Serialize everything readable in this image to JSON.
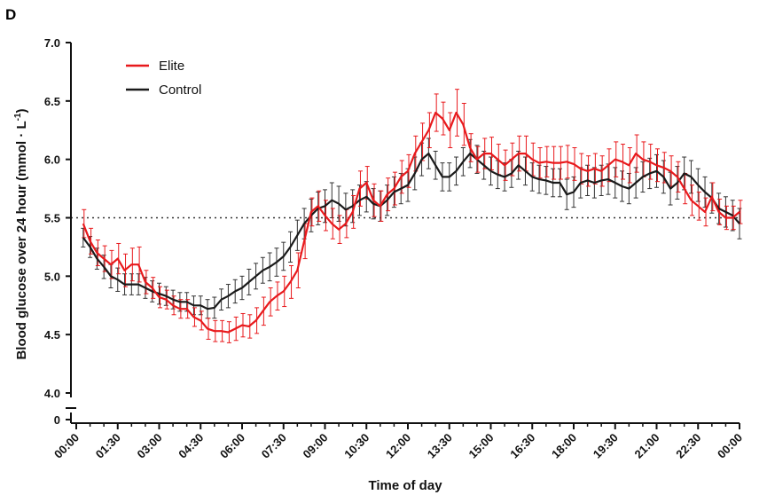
{
  "panel_label": "D",
  "chart_data": {
    "type": "line",
    "title": "",
    "xlabel": "Time of day",
    "ylabel_main": "Blood glucose over 24 hour (mmol · L",
    "ylabel_sup": "-1",
    "ylabel_close": ")",
    "ylim": [
      4.0,
      7.0
    ],
    "y_break_tick": 0,
    "yticks": [
      4.0,
      4.5,
      5.0,
      5.5,
      6.0,
      6.5,
      7.0
    ],
    "ytick_labels": [
      "4.0",
      "4.5",
      "5.0",
      "5.5",
      "6.0",
      "6.5",
      "7.0"
    ],
    "y_break_label": "0",
    "xticks": [
      0,
      1.5,
      3,
      4.5,
      6,
      7.5,
      9,
      10.5,
      12,
      13.5,
      15,
      16.5,
      18,
      19.5,
      21,
      22.5,
      24
    ],
    "xtick_labels": [
      "00:00",
      "01:30",
      "03:00",
      "04:30",
      "06:00",
      "07:30",
      "09:00",
      "10:30",
      "12:00",
      "13:30",
      "15:00",
      "16:30",
      "18:00",
      "19:30",
      "21:00",
      "22:30",
      "00:00"
    ],
    "reference_line": 5.5,
    "x_start": 0.25,
    "x_step": 0.25,
    "legend": {
      "position": "top-left"
    },
    "series": [
      {
        "name": "Elite",
        "color": "#e8191c",
        "values": [
          5.45,
          5.3,
          5.2,
          5.15,
          5.1,
          5.15,
          5.05,
          5.1,
          5.1,
          4.95,
          4.9,
          4.82,
          4.8,
          4.75,
          4.72,
          4.72,
          4.65,
          4.62,
          4.55,
          4.53,
          4.53,
          4.52,
          4.55,
          4.58,
          4.57,
          4.62,
          4.7,
          4.78,
          4.83,
          4.87,
          4.95,
          5.05,
          5.3,
          5.55,
          5.6,
          5.52,
          5.45,
          5.4,
          5.45,
          5.55,
          5.75,
          5.8,
          5.65,
          5.6,
          5.7,
          5.75,
          5.85,
          5.9,
          6.05,
          6.15,
          6.25,
          6.4,
          6.35,
          6.25,
          6.4,
          6.3,
          6.1,
          6.0,
          6.05,
          6.05,
          6.0,
          5.95,
          6.0,
          6.05,
          6.05,
          6.0,
          5.97,
          5.98,
          5.97,
          5.97,
          5.98,
          5.96,
          5.92,
          5.9,
          5.92,
          5.9,
          5.95,
          6.0,
          5.98,
          5.95,
          6.05,
          6.0,
          5.98,
          5.95,
          5.93,
          5.9,
          5.85,
          5.75,
          5.65,
          5.6,
          5.55,
          5.68,
          5.55,
          5.5,
          5.5,
          5.55
        ],
        "errors": [
          0.12,
          0.11,
          0.11,
          0.11,
          0.12,
          0.13,
          0.14,
          0.14,
          0.15,
          0.1,
          0.09,
          0.09,
          0.08,
          0.08,
          0.08,
          0.08,
          0.08,
          0.08,
          0.09,
          0.09,
          0.09,
          0.09,
          0.1,
          0.1,
          0.1,
          0.11,
          0.12,
          0.12,
          0.12,
          0.13,
          0.14,
          0.15,
          0.15,
          0.12,
          0.13,
          0.13,
          0.13,
          0.12,
          0.12,
          0.14,
          0.15,
          0.14,
          0.14,
          0.13,
          0.14,
          0.14,
          0.14,
          0.14,
          0.15,
          0.16,
          0.15,
          0.16,
          0.14,
          0.15,
          0.2,
          0.18,
          0.12,
          0.11,
          0.13,
          0.14,
          0.13,
          0.13,
          0.14,
          0.15,
          0.15,
          0.14,
          0.13,
          0.13,
          0.14,
          0.14,
          0.14,
          0.14,
          0.13,
          0.13,
          0.13,
          0.13,
          0.14,
          0.15,
          0.15,
          0.15,
          0.16,
          0.15,
          0.15,
          0.14,
          0.13,
          0.13,
          0.13,
          0.13,
          0.13,
          0.12,
          0.12,
          0.12,
          0.11,
          0.1,
          0.1,
          0.1
        ]
      },
      {
        "name": "Control",
        "color": "#1a1a1a",
        "values": [
          5.33,
          5.25,
          5.15,
          5.08,
          5.0,
          4.97,
          4.93,
          4.93,
          4.93,
          4.9,
          4.87,
          4.85,
          4.83,
          4.8,
          4.78,
          4.78,
          4.75,
          4.75,
          4.72,
          4.73,
          4.8,
          4.83,
          4.87,
          4.9,
          4.95,
          5.0,
          5.05,
          5.08,
          5.12,
          5.17,
          5.25,
          5.35,
          5.45,
          5.52,
          5.58,
          5.6,
          5.65,
          5.62,
          5.57,
          5.6,
          5.65,
          5.68,
          5.62,
          5.6,
          5.65,
          5.72,
          5.75,
          5.78,
          5.88,
          6.0,
          6.05,
          5.95,
          5.85,
          5.85,
          5.9,
          5.98,
          6.05,
          6.0,
          5.95,
          5.9,
          5.87,
          5.85,
          5.88,
          5.95,
          5.9,
          5.85,
          5.83,
          5.82,
          5.8,
          5.8,
          5.7,
          5.72,
          5.8,
          5.82,
          5.8,
          5.82,
          5.83,
          5.8,
          5.77,
          5.75,
          5.8,
          5.85,
          5.88,
          5.9,
          5.85,
          5.75,
          5.8,
          5.88,
          5.85,
          5.78,
          5.72,
          5.67,
          5.58,
          5.55,
          5.52,
          5.45
        ]
      }
    ],
    "control_errors_pos": [
      0.08,
      0.09,
      0.09,
      0.1,
      0.1,
      0.1,
      0.09,
      0.09,
      0.09,
      0.09,
      0.09,
      0.09,
      0.08,
      0.08,
      0.08,
      0.08,
      0.08,
      0.08,
      0.08,
      0.09,
      0.09,
      0.1,
      0.1,
      0.1,
      0.11,
      0.11,
      0.11,
      0.12,
      0.12,
      0.12,
      0.13,
      0.13,
      0.13,
      0.14,
      0.14,
      0.14,
      0.15,
      0.15,
      0.14,
      0.14,
      0.13,
      0.13,
      0.13,
      0.13,
      0.13,
      0.13,
      0.13,
      0.14,
      0.14,
      0.14,
      0.13,
      0.12,
      0.12,
      0.12,
      0.12,
      0.12,
      0.12,
      0.12,
      0.12,
      0.12,
      0.12,
      0.12,
      0.12,
      0.12,
      0.12,
      0.12,
      0.12,
      0.12,
      0.12,
      0.12,
      0.13,
      0.13,
      0.13,
      0.13,
      0.13,
      0.13,
      0.13,
      0.13,
      0.13,
      0.13,
      0.13,
      0.13,
      0.13,
      0.14,
      0.14,
      0.14,
      0.14,
      0.14,
      0.14,
      0.14,
      0.13,
      0.13,
      0.13,
      0.13,
      0.13,
      0.13
    ]
  }
}
